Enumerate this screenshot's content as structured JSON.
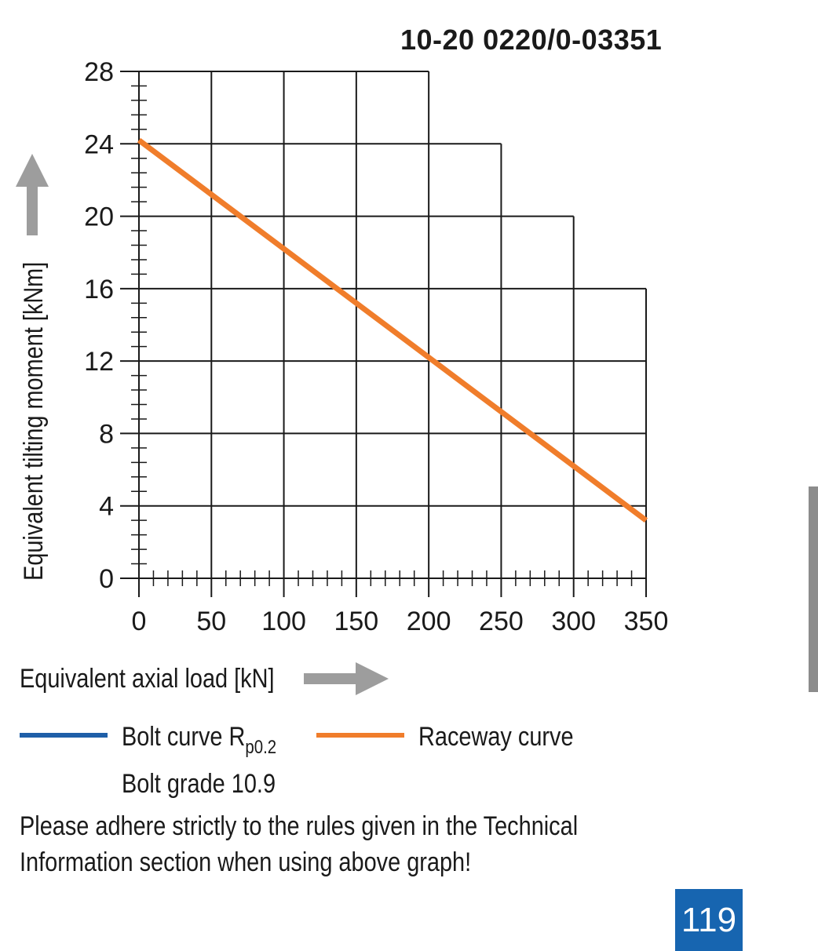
{
  "page": {
    "document_code": "10-20 0220/0-03351",
    "page_number": "119",
    "note_line1": "Please adhere strictly to the rules given in the Technical",
    "note_line2": "Information section when using above graph!"
  },
  "legend": {
    "bolt_label": "Bolt curve  R",
    "bolt_subscript": "p0.2",
    "bolt_grade": "Bolt grade 10.9",
    "raceway_label": "Raceway curve"
  },
  "colors": {
    "bolt_curve": "#1f5fa8",
    "raceway_curve": "#f07d2b",
    "arrow": "#9d9d9d",
    "page_tab": "#1765b0",
    "side_tab": "#8c8c8c"
  },
  "chart_data": {
    "type": "line",
    "xlabel": "Equivalent axial load [kN]",
    "ylabel": "Equivalent tilting moment [kNm]",
    "xlim": [
      0,
      350
    ],
    "ylim": [
      0,
      28
    ],
    "x_ticks": [
      0,
      50,
      100,
      150,
      200,
      250,
      300,
      350
    ],
    "y_ticks": [
      0,
      4,
      8,
      12,
      16,
      20,
      24,
      28
    ],
    "grid": true,
    "grid_envelope": [
      {
        "x_max": 200,
        "y_from": 24,
        "y_to": 28
      },
      {
        "x_max": 250,
        "y_from": 20,
        "y_to": 24
      },
      {
        "x_max": 300,
        "y_from": 16,
        "y_to": 20
      },
      {
        "x_max": 350,
        "y_from": 0,
        "y_to": 16
      }
    ],
    "series": [
      {
        "name": "Raceway curve",
        "x": [
          0,
          350
        ],
        "y": [
          24.2,
          3.2
        ]
      }
    ]
  }
}
